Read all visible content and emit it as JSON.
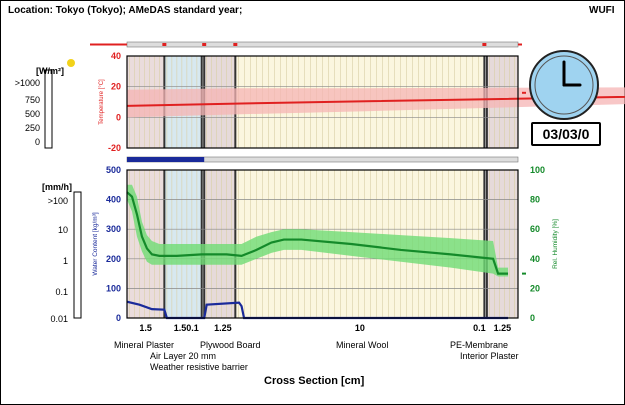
{
  "header": {
    "location": "Location: Tokyo (Tokyo); AMeDAS standard year;",
    "code": "WUFI"
  },
  "clock": {
    "date": "03/03/0"
  },
  "colors": {
    "temperature": "#e02020",
    "temperature_band": "#f5b4b4",
    "water_content": "#1a2a9a",
    "rel_humidity": "#148a2a",
    "rel_humidity_band": "#6fdc74",
    "sun": "#f2d21a",
    "clock_face": "#9fd3f0"
  },
  "chart_data": [
    {
      "type": "area",
      "name": "temperature-profile",
      "ylim": [
        -20,
        40
      ],
      "yticks": [
        "-20",
        "0",
        "20",
        "40"
      ],
      "ylabel": "Temperature [°C]",
      "x": [
        0,
        4.6,
        9.6,
        30
      ],
      "series": [
        {
          "name": "temperature",
          "values": [
            7.5,
            9.0,
            10.5,
            16.0
          ],
          "band_low": [
            0,
            2,
            4,
            13
          ],
          "band_high": [
            18,
            19,
            19,
            20
          ]
        }
      ]
    },
    {
      "type": "line",
      "name": "moisture-profile",
      "ylim_left": [
        0,
        500
      ],
      "yticks_left": [
        "0",
        "100",
        "200",
        "300",
        "400",
        "500"
      ],
      "ylabel_left": "Water Content [kg/m³]",
      "ylim_right": [
        0,
        100
      ],
      "yticks_right": [
        "0",
        "20",
        "40",
        "60",
        "80",
        "100"
      ],
      "ylabel_right": "Rel. Humidity [%]",
      "xlabel": "Cross Section [cm]",
      "x_ticks": [
        "1.5",
        "1.50.1",
        "1.25",
        "10",
        "0.1",
        "1.25"
      ],
      "layers": [
        {
          "label": "Mineral Plaster",
          "width": 1.5
        },
        {
          "label": "Air Layer 20 mm",
          "width": 1.5
        },
        {
          "label": "Weather resistive barrier",
          "width": 0.1
        },
        {
          "label": "Plywood Board",
          "width": 1.25
        },
        {
          "label": "Mineral Wool",
          "width": 10
        },
        {
          "label": "PE-Membrane",
          "width": 0.1
        },
        {
          "label": "Interior Plaster",
          "width": 1.25
        }
      ],
      "layer_labels": [
        "Mineral Plaster",
        "Plywood Board",
        "Air Layer 20 mm",
        "Weather resistive barrier",
        "Mineral Wool",
        "PE-Membrane",
        "Interior Plaster"
      ],
      "rh_x": [
        0,
        0.2,
        0.4,
        0.6,
        0.8,
        1.0,
        1.3,
        1.5,
        2.0,
        3.0,
        4.0,
        4.6,
        5.2,
        5.8,
        6.3,
        7,
        9,
        11,
        13,
        14.7,
        14.9,
        15.3
      ],
      "rh": [
        85,
        82,
        70,
        55,
        47,
        43,
        42,
        42,
        42,
        43,
        43,
        42,
        46,
        51,
        53,
        53,
        50,
        46,
        43,
        40,
        30,
        30
      ],
      "rh_band_low": [
        80,
        72,
        55,
        45,
        38,
        36,
        36,
        36,
        36,
        36,
        36,
        36,
        40,
        44,
        46,
        46,
        42,
        38,
        34,
        30,
        28,
        28
      ],
      "rh_band_high": [
        90,
        90,
        82,
        65,
        56,
        52,
        50,
        50,
        50,
        50,
        50,
        50,
        55,
        58,
        60,
        60,
        58,
        56,
        54,
        52,
        34,
        34
      ],
      "wc_x": [
        0,
        0.5,
        1.0,
        1.5,
        1.6,
        3.0,
        3.1,
        3.2,
        4.5,
        4.6,
        4.7,
        15.3
      ],
      "wc": [
        55,
        45,
        30,
        28,
        0,
        0,
        0,
        45,
        52,
        40,
        0,
        0
      ],
      "left_scale_flux": [
        "[mm/h]",
        ">100",
        "10",
        "1",
        "0.1",
        "0.01"
      ],
      "left_scale_rad": [
        "[W/m²]",
        ">1000",
        "750",
        "500",
        "250",
        "0"
      ]
    }
  ]
}
